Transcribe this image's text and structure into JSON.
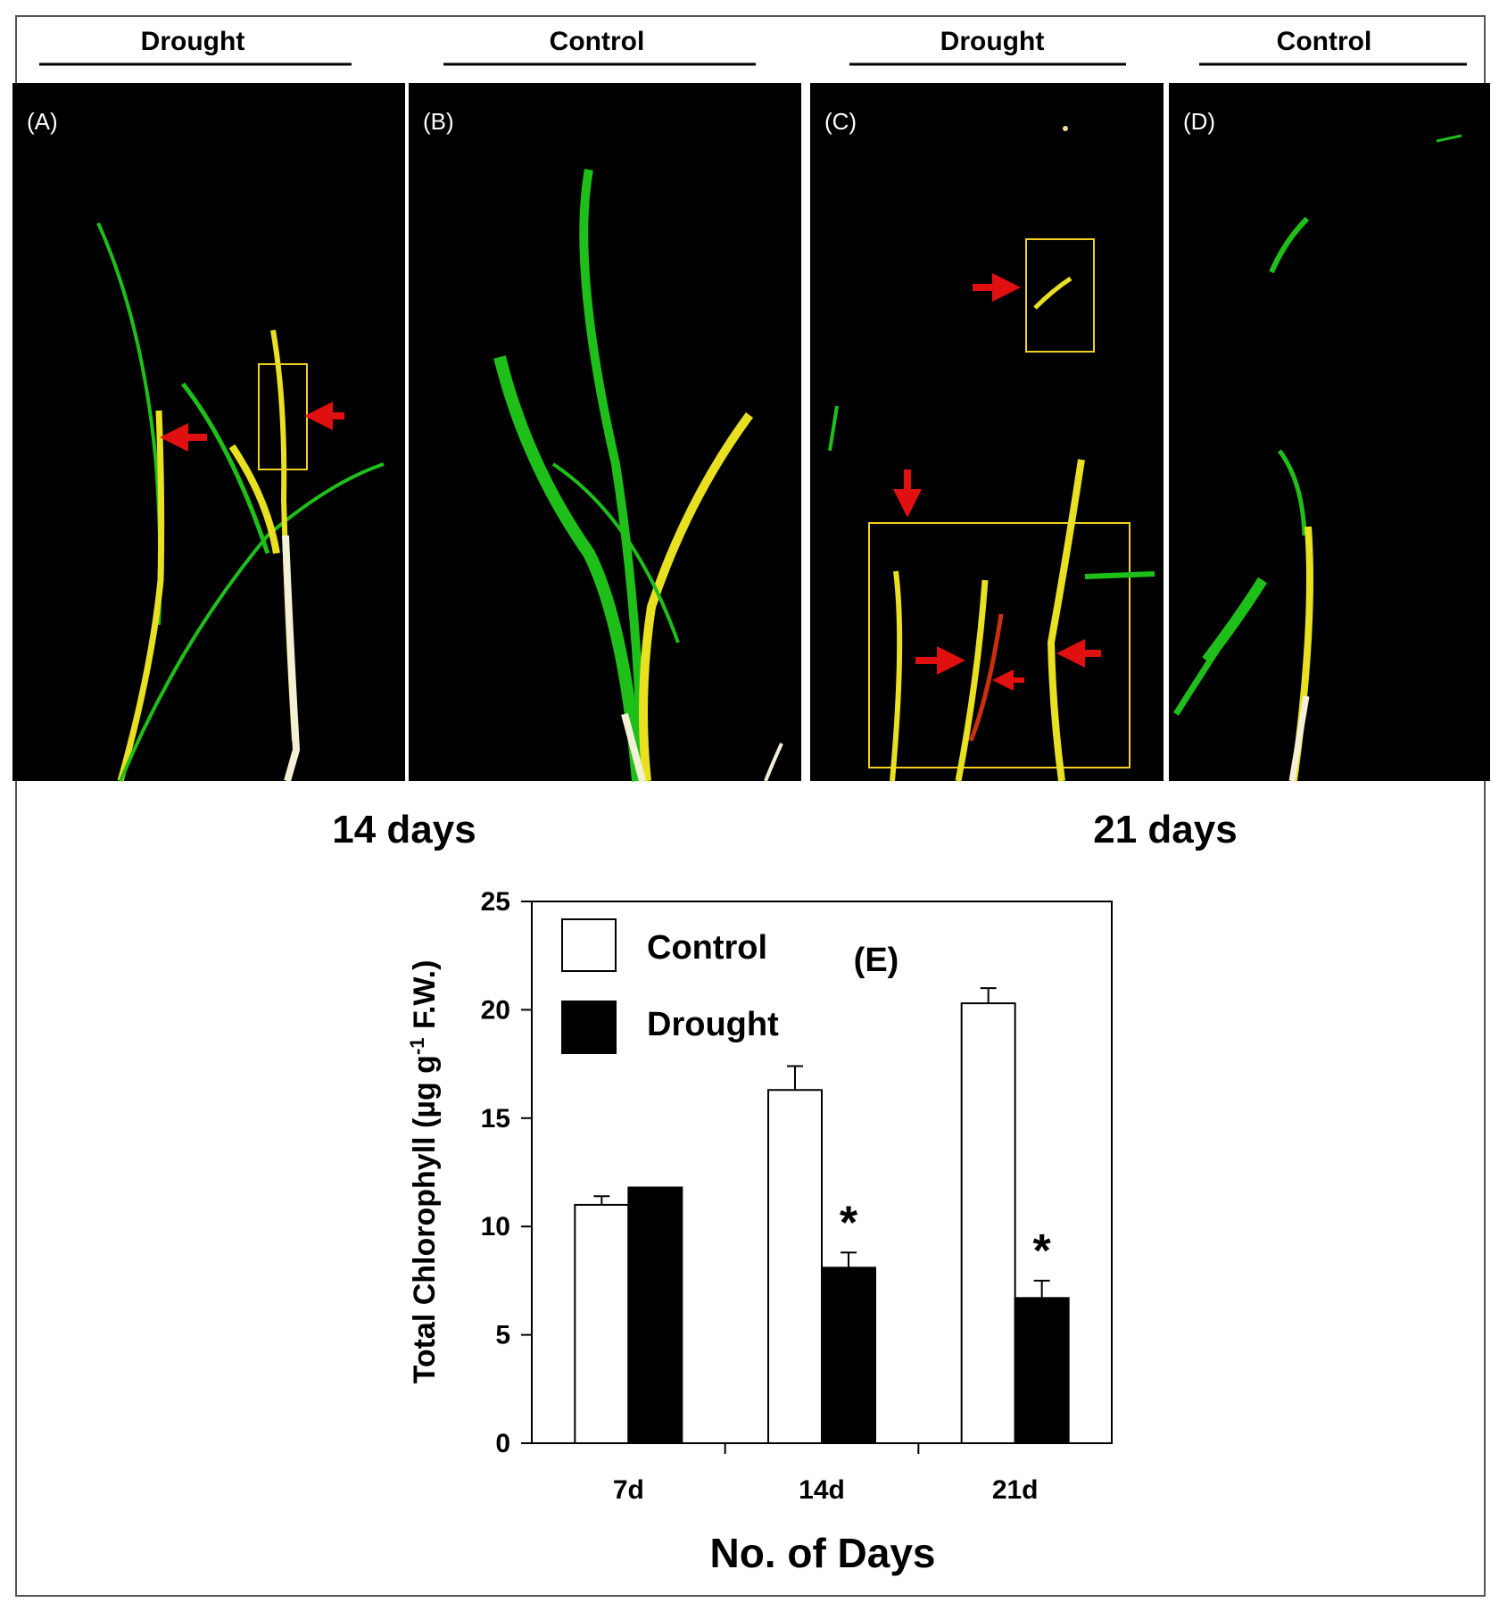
{
  "panels": {
    "headers": [
      "Drought",
      "Control",
      "Drought",
      "Control"
    ],
    "labels": [
      "(A)",
      "(B)",
      "(C)",
      "(D)"
    ],
    "timepoints": [
      "14 days",
      "21 days"
    ]
  },
  "colors": {
    "background": "#000000",
    "leaf_green": "#1fbf1a",
    "leaf_yellow": "#e8e020",
    "stress_red": "#e01010",
    "box_yellow": "#f0d020"
  },
  "chart_data": {
    "type": "bar",
    "panel_label": "(E)",
    "categories": [
      "7d",
      "14d",
      "21d"
    ],
    "series": [
      {
        "name": "Control",
        "values": [
          11.0,
          16.3,
          20.3
        ],
        "errors": [
          0.4,
          1.1,
          0.7
        ],
        "fill": "#ffffff"
      },
      {
        "name": "Drought",
        "values": [
          11.8,
          8.1,
          6.7
        ],
        "errors": [
          0,
          0.7,
          0.8
        ],
        "fill": "#000000"
      }
    ],
    "significance": [
      {
        "category": "14d",
        "series": "Drought",
        "mark": "*"
      },
      {
        "category": "21d",
        "series": "Drought",
        "mark": "*"
      }
    ],
    "ylabel_main": "Total Chlorophyll (µg g",
    "ylabel_sup": "-1",
    "ylabel_tail": " F.W.)",
    "xlabel": "No. of Days",
    "ylim": [
      0,
      25
    ],
    "yticks": [
      0,
      5,
      10,
      15,
      20,
      25
    ],
    "legend_position": "top-left",
    "grid": false
  }
}
